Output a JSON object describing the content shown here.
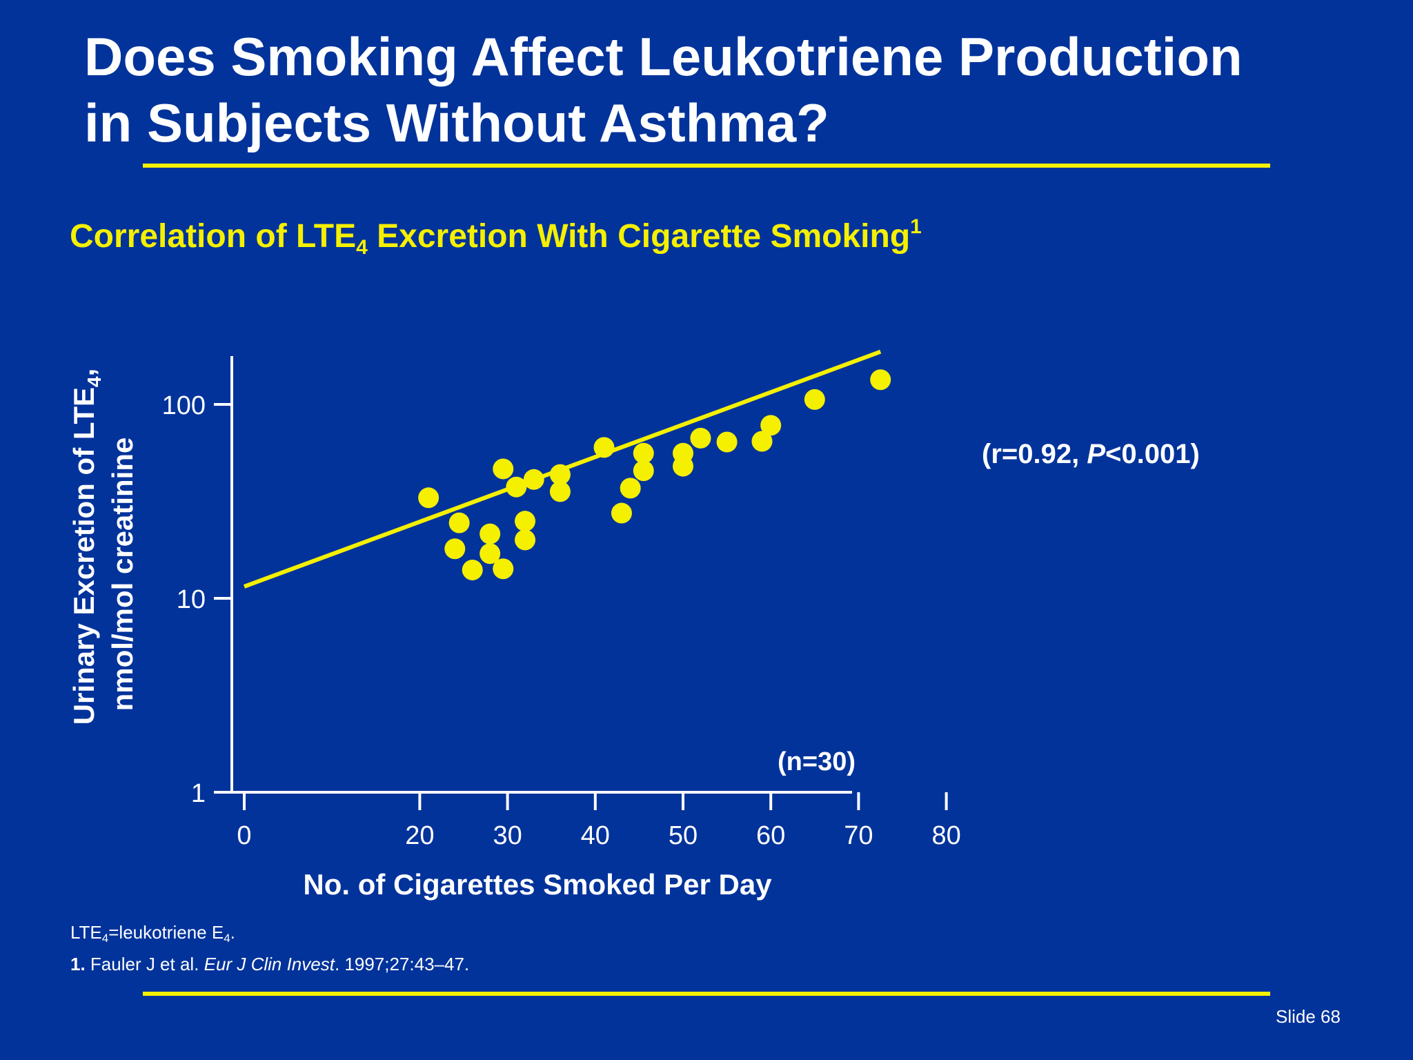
{
  "slide": {
    "title_line1": "Does Smoking Affect Leukotriene Production",
    "title_line2": "in Subjects Without Asthma?",
    "subtitle_pre": "Correlation of LTE",
    "subtitle_sub": "4",
    "subtitle_post": " Excretion With Cigarette Smoking",
    "subtitle_sup": "1",
    "stat_r_pre": "(r=0.92, ",
    "stat_r_p": "P",
    "stat_r_post": "<0.001)",
    "footnote1_pre": "LTE",
    "footnote1_sub": "4",
    "footnote1_mid": "=leukotriene  E",
    "footnote1_sub2": "4",
    "footnote1_post": ".",
    "footnote2_num": "1.",
    "footnote2_authors": " Fauler J et al. ",
    "footnote2_journal": "Eur J Clin Invest",
    "footnote2_rest": ". 1997;27:43–47.",
    "slide_number": "Slide 68",
    "accent_color": "#f5f000",
    "background_color": "#02339b"
  },
  "chart_data": {
    "type": "scatter",
    "title": "",
    "xlabel": "No. of Cigarettes Smoked Per Day",
    "ylabel_line1": "Urinary Excretion of LTE",
    "ylabel_line1_sub": "4",
    "ylabel_line1_end": ",",
    "ylabel_line2": "nmol/mol creatinine",
    "xlim": [
      0,
      80
    ],
    "ylim": [
      1,
      200
    ],
    "y_scale": "log",
    "x_ticks": [
      0,
      20,
      30,
      40,
      50,
      60,
      70,
      80
    ],
    "x_tick_labels": [
      "0",
      "20",
      "30",
      "40",
      "50",
      "60",
      "70",
      "80"
    ],
    "y_ticks": [
      1,
      10,
      100
    ],
    "y_tick_labels": [
      "1",
      "10",
      "100"
    ],
    "annotation_n": "(n=30)",
    "grid": false,
    "series": [
      {
        "points": [
          [
            21,
            33
          ],
          [
            24,
            18
          ],
          [
            24.5,
            24.5
          ],
          [
            26,
            14
          ],
          [
            28,
            17
          ],
          [
            28,
            21.5
          ],
          [
            29.5,
            14.2
          ],
          [
            29.5,
            46.5
          ],
          [
            31,
            37.5
          ],
          [
            32,
            20
          ],
          [
            32,
            25
          ],
          [
            33,
            41
          ],
          [
            36,
            43.5
          ],
          [
            36,
            35.5
          ],
          [
            41,
            60
          ],
          [
            43,
            27.5
          ],
          [
            44,
            37
          ],
          [
            45.5,
            56
          ],
          [
            45.5,
            45.5
          ],
          [
            50,
            56
          ],
          [
            50,
            48
          ],
          [
            52,
            67
          ],
          [
            55,
            64
          ],
          [
            59,
            64.5
          ],
          [
            60,
            78
          ],
          [
            65,
            106
          ],
          [
            72.5,
            134
          ]
        ]
      }
    ],
    "fit_line": {
      "x": [
        0,
        72.5
      ],
      "y": [
        11.5,
        187
      ]
    }
  }
}
